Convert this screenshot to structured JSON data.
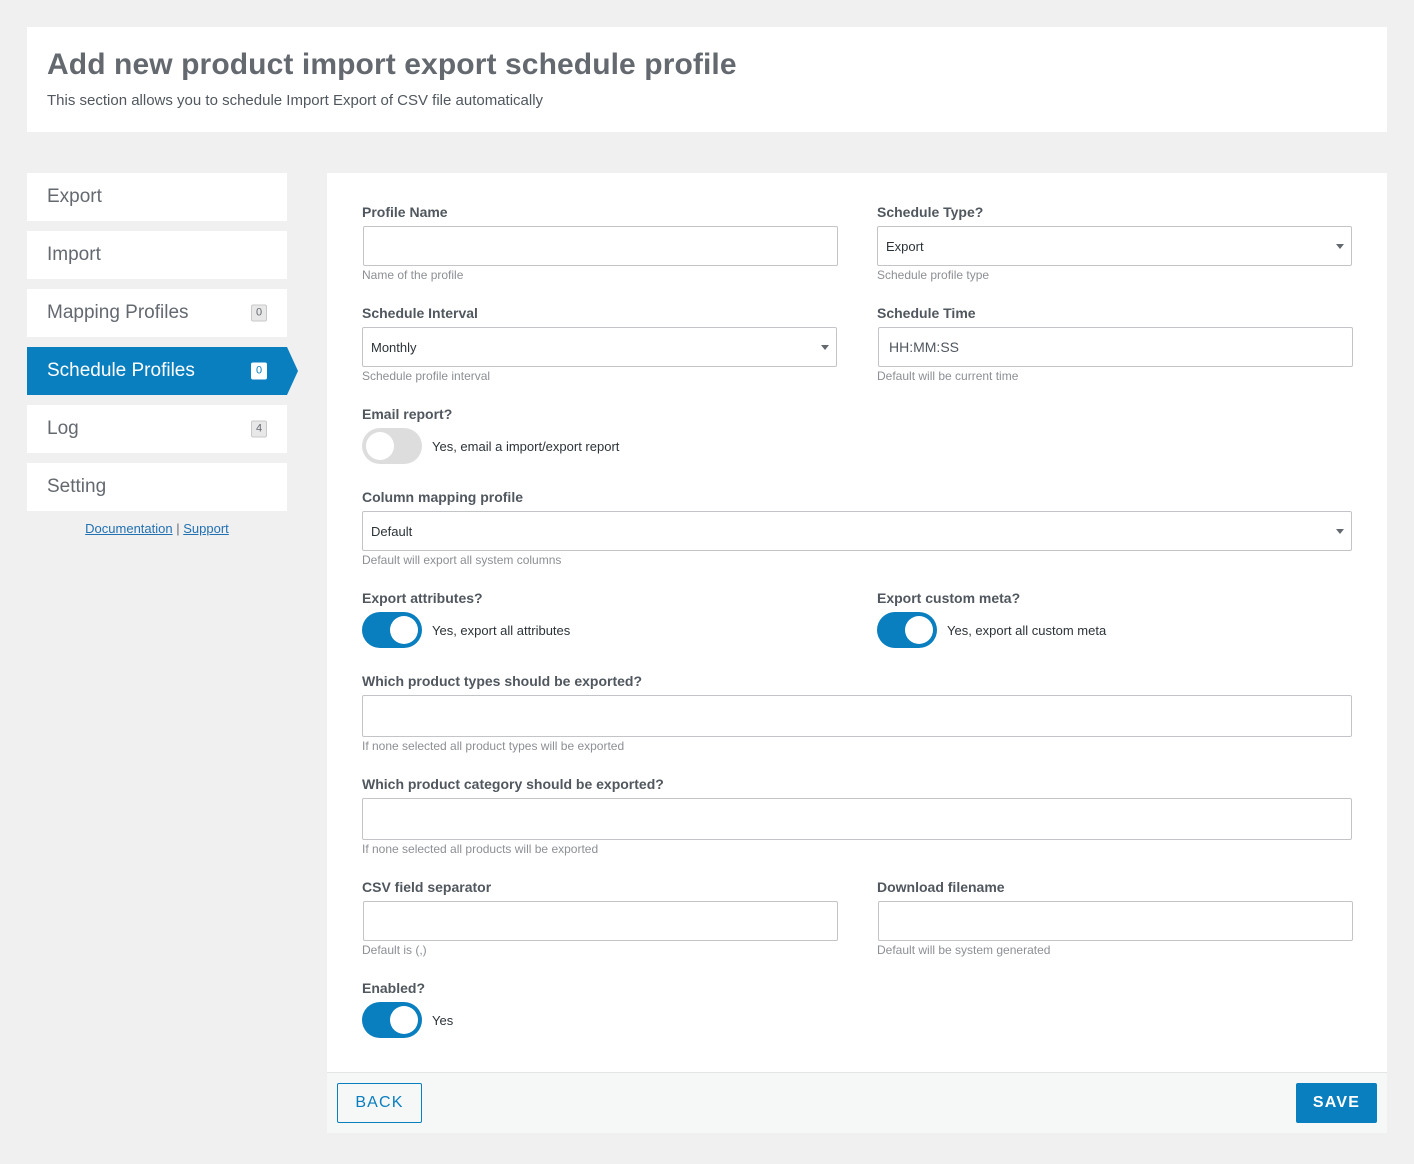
{
  "header": {
    "title": "Add new product import export schedule profile",
    "subtitle": "This section allows you to schedule Import Export of CSV file automatically"
  },
  "sidebar": {
    "items": [
      {
        "label": "Export"
      },
      {
        "label": "Import"
      },
      {
        "label": "Mapping Profiles",
        "count": "0"
      },
      {
        "label": "Schedule Profiles",
        "count": "0",
        "active": true
      },
      {
        "label": "Log",
        "count": "4"
      },
      {
        "label": "Setting"
      }
    ],
    "links": {
      "documentation": "Documentation",
      "separator": "|",
      "support": "Support"
    }
  },
  "form": {
    "profile_name": {
      "label": "Profile Name",
      "value": "",
      "help": "Name of the profile"
    },
    "schedule_type": {
      "label": "Schedule Type?",
      "value": "Export",
      "help": "Schedule profile type"
    },
    "schedule_interval": {
      "label": "Schedule Interval",
      "value": "Monthly",
      "help": "Schedule profile interval"
    },
    "schedule_time": {
      "label": "Schedule Time",
      "placeholder": "HH:MM:SS",
      "help": "Default will be current time"
    },
    "email_report": {
      "label": "Email report?",
      "text": "Yes, email a import/export report",
      "enabled": false
    },
    "column_mapping": {
      "label": "Column mapping profile",
      "value": "Default",
      "help": "Default will export all system columns"
    },
    "export_attributes": {
      "label": "Export attributes?",
      "text": "Yes, export all attributes",
      "enabled": true
    },
    "export_custom_meta": {
      "label": "Export custom meta?",
      "text": "Yes, export all custom meta",
      "enabled": true
    },
    "product_types": {
      "label": "Which product types should be exported?",
      "value": "",
      "help": "If none selected all product types will be exported"
    },
    "product_category": {
      "label": "Which product category should be exported?",
      "value": "",
      "help": "If none selected all products will be exported"
    },
    "csv_separator": {
      "label": "CSV field separator",
      "value": "",
      "help": "Default is (,)"
    },
    "download_filename": {
      "label": "Download filename",
      "value": "",
      "help": "Default will be system generated"
    },
    "enabled": {
      "label": "Enabled?",
      "text": "Yes",
      "enabled": true
    }
  },
  "footer": {
    "back_label": "BACK",
    "save_label": "SAVE"
  },
  "colors": {
    "accent": "#0a7fbf",
    "background": "#f0f0f1",
    "toggle_off": "#dddddd"
  }
}
